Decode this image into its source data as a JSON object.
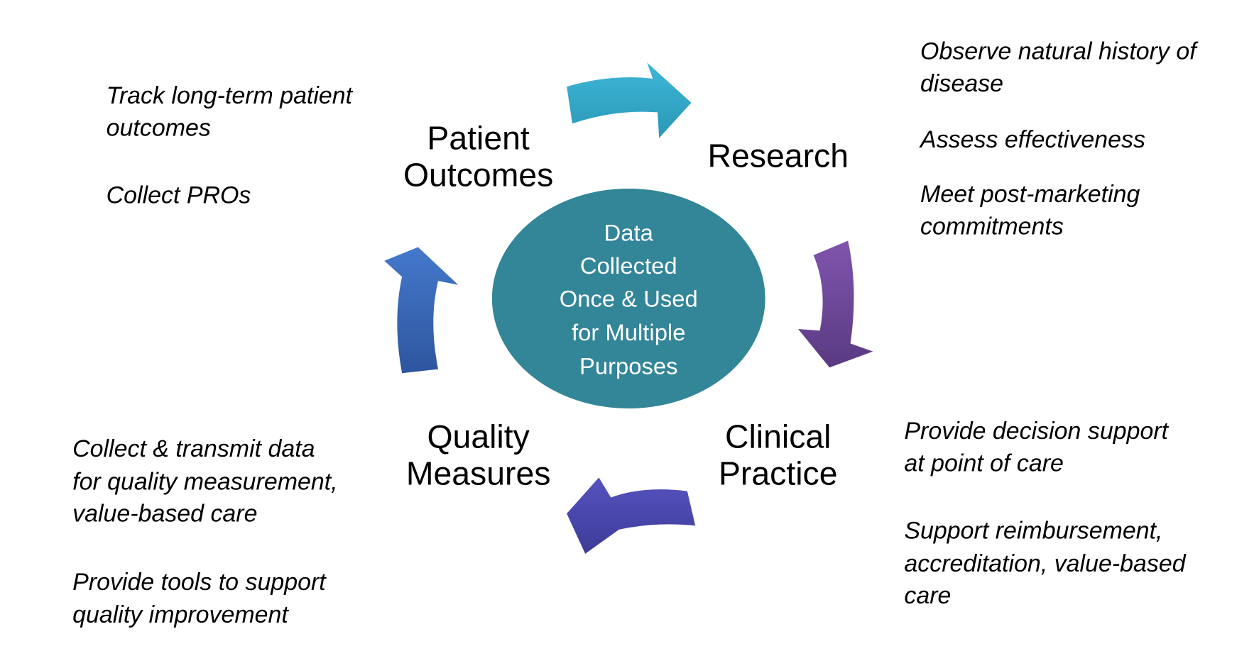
{
  "center": {
    "lines": [
      "Data",
      "Collected",
      "Once & Used",
      "for Multiple",
      "Purposes"
    ],
    "color": "#338598"
  },
  "nodes": {
    "patient_outcomes": {
      "lines": [
        "Patient",
        "Outcomes"
      ]
    },
    "research": {
      "lines": [
        "Research"
      ]
    },
    "clinical_practice": {
      "lines": [
        "Clinical",
        "Practice"
      ]
    },
    "quality_measures": {
      "lines": [
        "Quality",
        "Measures"
      ]
    }
  },
  "notes": {
    "patient_outcomes": [
      "Track long-term patient",
      "outcomes",
      "Collect PROs"
    ],
    "research": [
      "Observe natural history of",
      "disease",
      "Assess effectiveness",
      "Meet post-marketing",
      "commitments"
    ],
    "clinical_practice": [
      "Provide decision support",
      "at point of care",
      "Support reimbursement,",
      "accreditation, value-based",
      "care"
    ],
    "quality_measures": [
      "Collect & transmit data",
      "for quality measurement,",
      "value-based care",
      "Provide tools to support",
      "quality improvement"
    ]
  },
  "arrows": {
    "outcomes_to_research": "#35a9c9",
    "research_to_clinical": "#6f4a9a",
    "clinical_to_quality": "#4a48b0",
    "quality_to_outcomes": "#3a68bd"
  }
}
